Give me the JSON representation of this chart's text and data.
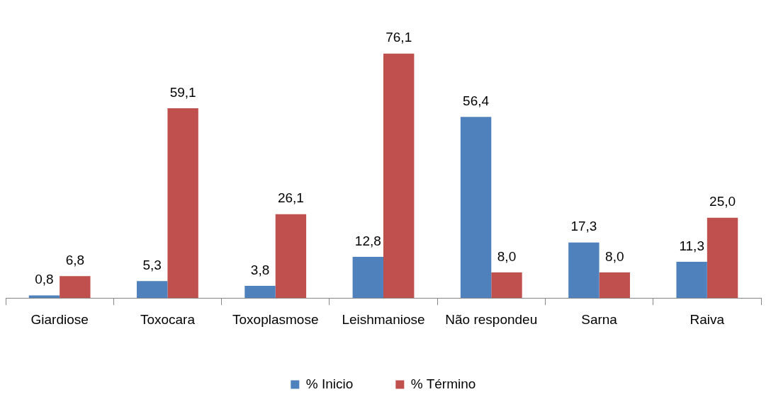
{
  "chart_data": {
    "type": "bar",
    "categories": [
      "Giardiose",
      "Toxocara",
      "Toxoplasmose",
      "Leishmaniose",
      "Não respondeu",
      "Sarna",
      "Raiva"
    ],
    "legend": "bottom",
    "grid": false,
    "series": [
      {
        "name": "% Inicio",
        "color": "#4f81bd",
        "values": [
          0.8,
          5.3,
          3.8,
          12.8,
          56.4,
          17.3,
          11.3
        ],
        "value_labels": [
          "0,8",
          "5,3",
          "3,8",
          "12,8",
          "56,4",
          "17,3",
          "11,3"
        ]
      },
      {
        "name": "% Término",
        "color": "#c0504d",
        "values": [
          6.8,
          59.1,
          26.1,
          76.1,
          8.0,
          8.0,
          25.0
        ],
        "value_labels": [
          "6,8",
          "59,1",
          "26,1",
          "76,1",
          "8,0",
          "8,0",
          "25,0"
        ]
      }
    ]
  }
}
